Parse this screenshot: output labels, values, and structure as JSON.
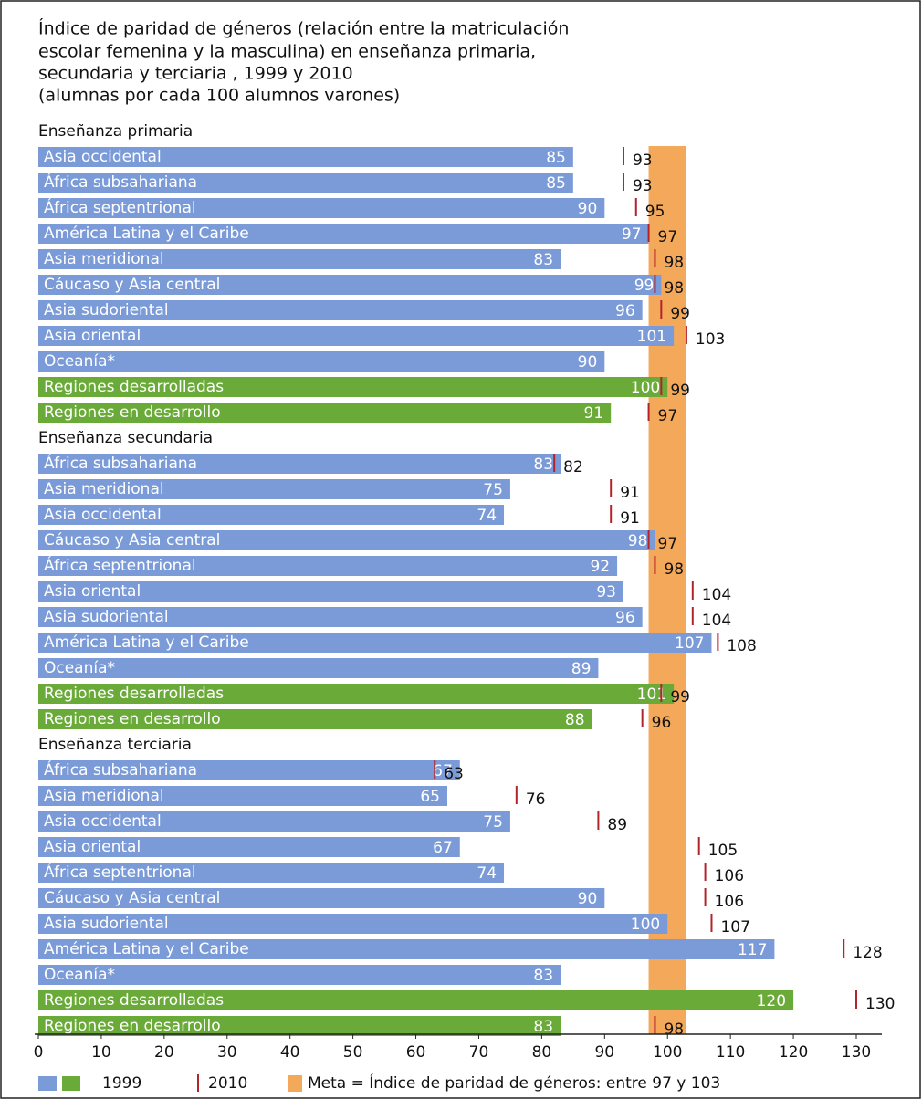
{
  "chart_data": {
    "type": "bar",
    "title": [
      "Índice de paridad de géneros (relación entre la matriculación",
      "escolar femenina y la masculina) en enseñanza primaria,",
      "secundaria y terciaria , 1999 y 2010"
    ],
    "subtitle": "(alumnas por cada 100 alumnos varones)",
    "xlim": [
      0,
      130
    ],
    "xticks": [
      0,
      10,
      20,
      30,
      40,
      50,
      60,
      70,
      80,
      90,
      100,
      110,
      120,
      130
    ],
    "series": [
      {
        "name": "1999",
        "color": "#7b9bd8",
        "highlight_color": "#6aaa38"
      },
      {
        "name": "2010",
        "color": "#b2242c"
      }
    ],
    "goal": [
      97,
      103
    ],
    "goal_color": "#f4a95a",
    "goal_label": "Meta = Índice de paridad de géneros: entre 97 y 103",
    "panels": [
      {
        "name": "Enseñanza primaria",
        "categories": [
          "Asia occidental",
          "África subsahariana",
          "África septentrional",
          "América Latina y el Caribe",
          "Asia meridional",
          "Cáucaso y Asia central",
          "Asia sudoriental",
          "Asia oriental",
          "Oceanía*",
          "Regiones desarrolladas",
          "Regiones en desarrollo"
        ],
        "highlight": [
          false,
          false,
          false,
          false,
          false,
          false,
          false,
          false,
          false,
          true,
          true
        ],
        "values_1999": [
          85,
          85,
          90,
          97,
          83,
          99,
          96,
          101,
          90,
          100,
          91
        ],
        "values_2010": [
          93,
          93,
          95,
          97,
          98,
          98,
          99,
          103,
          null,
          99,
          97
        ]
      },
      {
        "name": "Enseñanza secundaria",
        "categories": [
          "África subsahariana",
          "Asia meridional",
          "Asia occidental",
          "Cáucaso y Asia central",
          "África septentrional",
          "Asia oriental",
          "Asia sudoriental",
          "América Latina y el Caribe",
          "Oceanía*",
          "Regiones desarrolladas",
          "Regiones en desarrollo"
        ],
        "highlight": [
          false,
          false,
          false,
          false,
          false,
          false,
          false,
          false,
          false,
          true,
          true
        ],
        "values_1999": [
          83,
          75,
          74,
          98,
          92,
          93,
          96,
          107,
          89,
          101,
          88
        ],
        "values_2010": [
          82,
          91,
          91,
          97,
          98,
          104,
          104,
          108,
          null,
          99,
          96
        ]
      },
      {
        "name": "Enseñanza terciaria",
        "categories": [
          "África subsahariana",
          "Asia meridional",
          "Asia occidental",
          "Asia oriental",
          "África septentrional",
          "Cáucaso y Asia central",
          "Asia sudoriental",
          "América Latina y el Caribe",
          "Oceanía*",
          "Regiones desarrolladas",
          "Regiones en desarrollo"
        ],
        "highlight": [
          false,
          false,
          false,
          false,
          false,
          false,
          false,
          false,
          false,
          true,
          true
        ],
        "values_1999": [
          67,
          65,
          75,
          67,
          74,
          90,
          100,
          117,
          83,
          120,
          83
        ],
        "values_2010": [
          63,
          76,
          89,
          105,
          106,
          106,
          107,
          128,
          null,
          130,
          98
        ]
      }
    ]
  }
}
